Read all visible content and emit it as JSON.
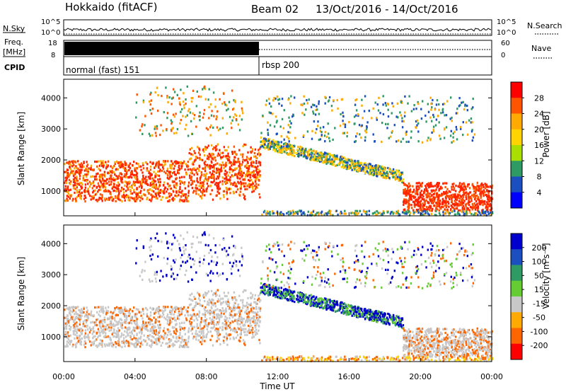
{
  "header": {
    "radar": "Hokkaido (fitACF)",
    "beam": "Beam 02",
    "daterange": "13/Oct/2016 - 14/Oct/2016"
  },
  "status_panel": {
    "nsky_label": "N.Sky",
    "nsky_ticks": [
      "10^5",
      "10^0"
    ],
    "nsearch_label": "N.Search",
    "nsearch_ticks": [
      "10^5",
      "10^0"
    ],
    "freq_label_1": "Freq.",
    "freq_label_2": "[MHz]",
    "freq_ticks": [
      "18",
      "8"
    ],
    "nave_label": "Nave",
    "nave_ticks": [
      "60",
      "0"
    ],
    "cpid_label": "CPID",
    "cpid_1": "normal (fast) 151",
    "cpid_2": "rbsp 200"
  },
  "chart_data": [
    {
      "type": "heatmap",
      "parameter": "Power",
      "ylabel": "Slant Range [km]",
      "yticks": [
        1000,
        2000,
        3000,
        4000
      ],
      "ylim": [
        200,
        4600
      ],
      "colorbar_label": "Power [dB]",
      "colorbar_ticks": [
        "28",
        "24",
        "20",
        "16",
        "12",
        "8",
        "4"
      ],
      "colorbar_colors": [
        "#ff0000",
        "#ff5500",
        "#ffaa00",
        "#ffd300",
        "#aadd00",
        "#2e9b64",
        "#1b4fc0",
        "#0000ff"
      ],
      "echo_regions": [
        {
          "t_start": 0,
          "t_end": 11,
          "r_low": 700,
          "r_high": 2000,
          "level": "high"
        },
        {
          "t_start": 11,
          "t_end": 19,
          "r_low": 1300,
          "r_high": 2600,
          "level": "medium"
        },
        {
          "t_start": 19,
          "t_end": 24,
          "r_low": 400,
          "r_high": 1300,
          "level": "high"
        }
      ]
    },
    {
      "type": "heatmap",
      "parameter": "Velocity",
      "ylabel": "Slant Range [km]",
      "yticks": [
        1000,
        2000,
        3000,
        4000
      ],
      "ylim": [
        200,
        4600
      ],
      "colorbar_label": "Velocity [m s⁻¹]",
      "colorbar_ticks": [
        "200",
        "100",
        "50",
        "15",
        "-15",
        "-50",
        "-100",
        "-200"
      ],
      "colorbar_colors": [
        "#0000cc",
        "#1b4fc0",
        "#2e9b64",
        "#66cc33",
        "#c8c8c8",
        "#ffaa00",
        "#ff6600",
        "#ff0000"
      ],
      "xlabel": "Time UT",
      "xticks": [
        "00:00",
        "04:00",
        "08:00",
        "12:00",
        "16:00",
        "20:00",
        "00:00"
      ],
      "xlim_hours": [
        0,
        24
      ]
    }
  ],
  "colors": {
    "power_high": "#ff2200",
    "power_mid": "#ffaa00",
    "power_low": "#2e9b64",
    "velocity_toward": "#0000cc",
    "velocity_low": "#c8c8c8",
    "velocity_away": "#ff6600"
  }
}
